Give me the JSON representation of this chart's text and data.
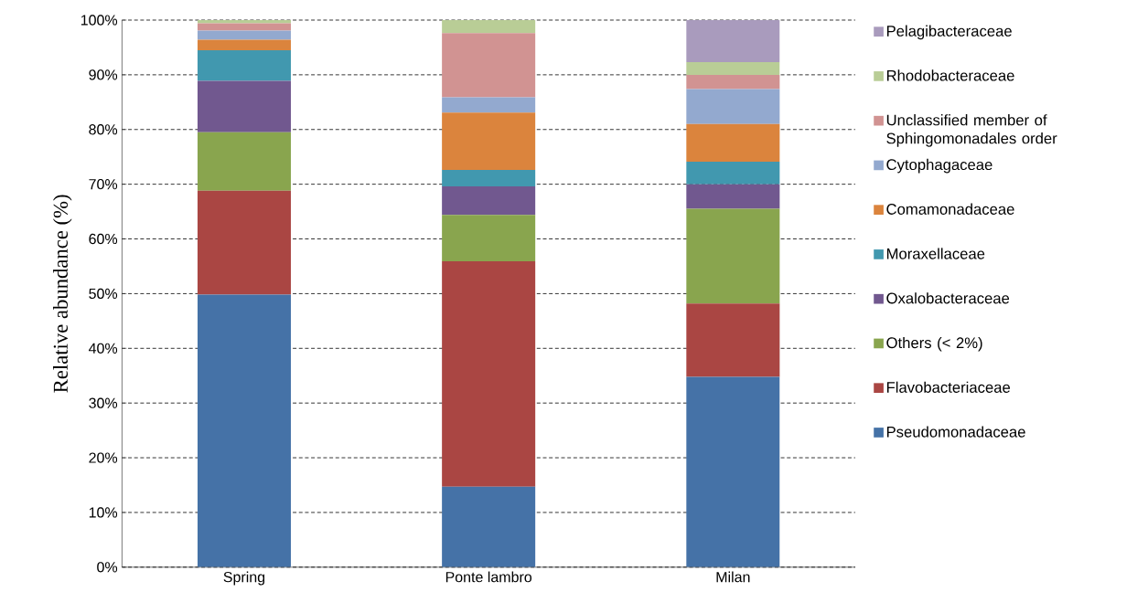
{
  "chart_data": {
    "type": "bar",
    "stacked": true,
    "ylabel": "Relative abundance (%)",
    "categories": [
      "Spring",
      "Ponte lambro",
      "Milan"
    ],
    "series": [
      {
        "name": "Pseudomonadaceae",
        "color": "#4572a7",
        "values": [
          49.8,
          14.7,
          34.8
        ]
      },
      {
        "name": "Flavobacteriaceae",
        "color": "#aa4643",
        "values": [
          19.0,
          41.2,
          13.4
        ]
      },
      {
        "name": "Others (< 2%)",
        "color": "#89a54e",
        "values": [
          10.7,
          8.5,
          17.3
        ]
      },
      {
        "name": "Oxalobacteraceae",
        "color": "#71588f",
        "values": [
          9.4,
          5.2,
          4.5
        ]
      },
      {
        "name": "Moraxellaceae",
        "color": "#4198af",
        "values": [
          5.6,
          3.0,
          4.1
        ]
      },
      {
        "name": "Comamonadaceae",
        "color": "#db843d",
        "values": [
          1.9,
          10.5,
          6.9
        ]
      },
      {
        "name": "Cytophagaceae",
        "color": "#93a9cf",
        "values": [
          1.7,
          2.8,
          6.4
        ]
      },
      {
        "name": "Unclassified member of Sphingomonadales order",
        "color": "#d19392",
        "values": [
          1.3,
          11.7,
          2.6
        ]
      },
      {
        "name": "Rhodobacteraceae",
        "color": "#b9cd96",
        "values": [
          0.6,
          2.4,
          2.3
        ]
      },
      {
        "name": "Pelagibacteraceae",
        "color": "#a99bbd",
        "values": [
          0,
          0,
          7.7
        ]
      }
    ],
    "ylim": [
      0,
      100
    ],
    "yticks": [
      {
        "value": 0,
        "label": "0%"
      },
      {
        "value": 10,
        "label": "10%"
      },
      {
        "value": 20,
        "label": "20%"
      },
      {
        "value": 30,
        "label": "30%"
      },
      {
        "value": 40,
        "label": "40%"
      },
      {
        "value": 50,
        "label": "50%"
      },
      {
        "value": 60,
        "label": "60%"
      },
      {
        "value": 70,
        "label": "70%"
      },
      {
        "value": 80,
        "label": "80%"
      },
      {
        "value": 90,
        "label": "90%"
      },
      {
        "value": 100,
        "label": "100%"
      }
    ],
    "grid": "y",
    "legend": "right"
  }
}
